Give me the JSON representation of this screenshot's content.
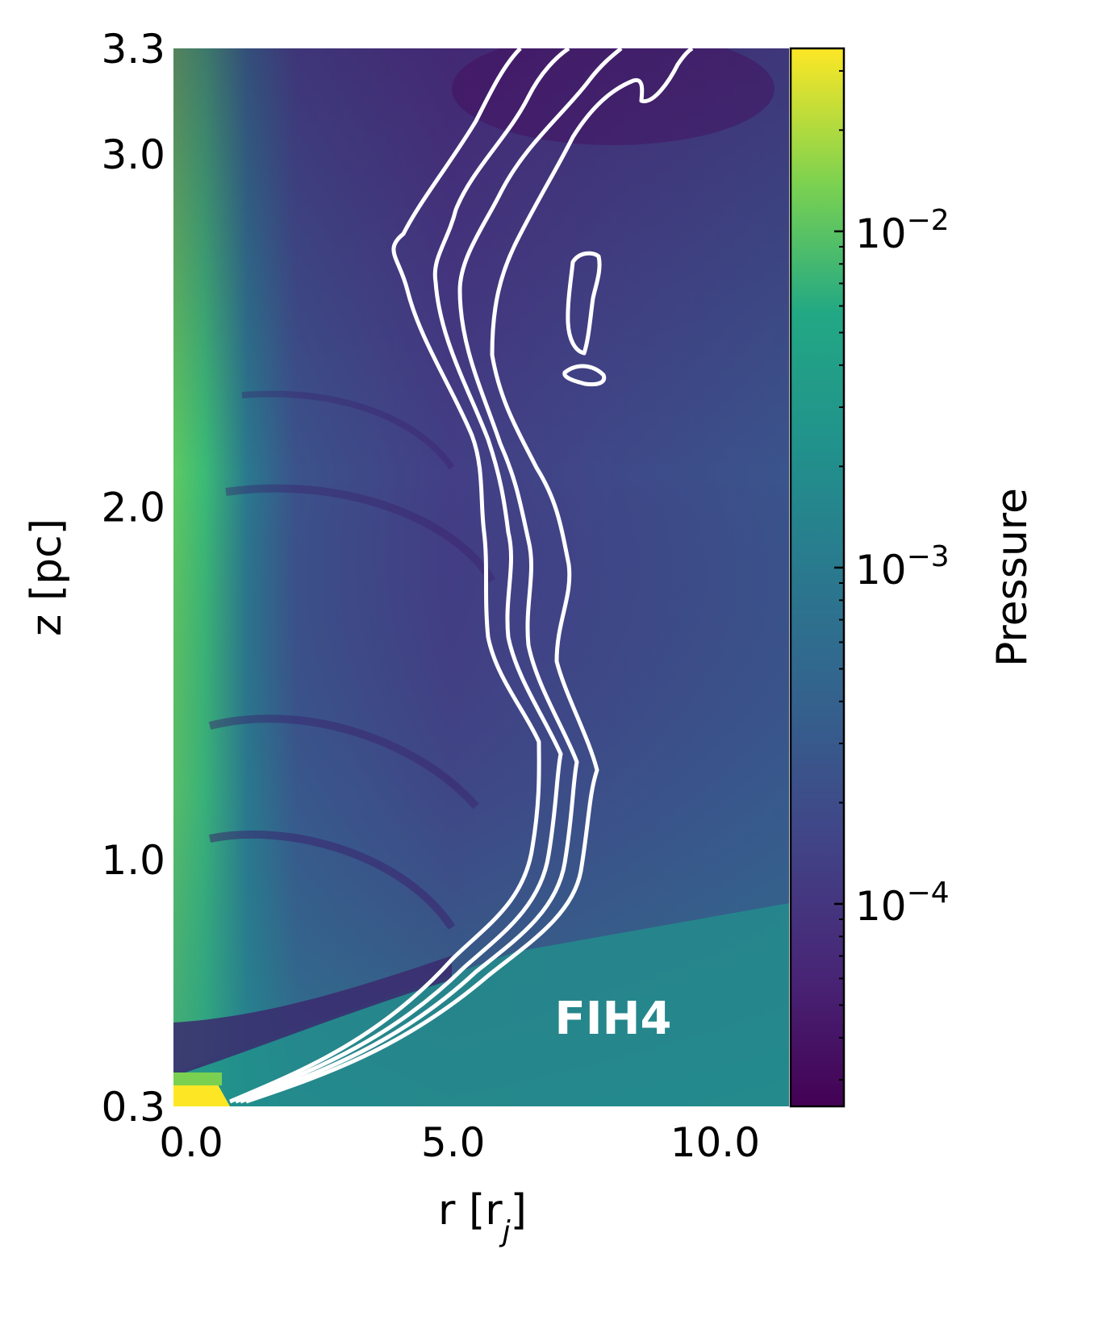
{
  "chart_data": {
    "type": "heatmap",
    "title": "",
    "xlabel": "r [r_j]",
    "ylabel": "z [pc]",
    "xlim": [
      0.0,
      11.75
    ],
    "ylim": [
      0.3,
      3.3
    ],
    "x_ticks": [
      "0.0",
      "5.0",
      "10.0"
    ],
    "x_tick_values": [
      0.0,
      5.0,
      10.0
    ],
    "y_ticks": [
      "0.3",
      "1.0",
      "2.0",
      "3.0",
      "3.3"
    ],
    "y_tick_values": [
      0.3,
      1.0,
      2.0,
      3.0,
      3.3
    ],
    "colorbar": {
      "label": "Pressure",
      "scale": "log",
      "range": [
        2.5e-05,
        0.035
      ],
      "ticks": [
        {
          "value": 0.01,
          "base": "10",
          "exp": "−2"
        },
        {
          "value": 0.001,
          "base": "10",
          "exp": "−3"
        },
        {
          "value": 0.0001,
          "base": "10",
          "exp": "−4"
        }
      ],
      "colormap": "viridis"
    },
    "contour_color": "#ffffff",
    "annotation": "FIH4"
  }
}
